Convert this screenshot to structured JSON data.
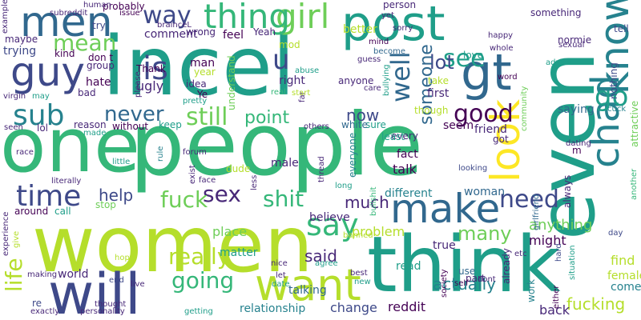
{
  "palette": {
    "teal": "#1f9e89",
    "lime": "#b5de2b",
    "navy": "#3e4989",
    "purple": "#482878",
    "green": "#35b779",
    "blue": "#31688e",
    "light_green": "#6ece58",
    "yellow": "#fde725",
    "dark_purple": "#440154",
    "mid_teal": "#26828e"
  },
  "words": [
    {
      "text": "incel",
      "c": "teal"
    },
    {
      "text": "people",
      "c": "green"
    },
    {
      "text": "one",
      "c": "green"
    },
    {
      "text": "women",
      "c": "lime"
    },
    {
      "text": "think",
      "c": "teal"
    },
    {
      "text": "even",
      "c": "teal"
    },
    {
      "text": "want",
      "c": "lime"
    },
    {
      "text": "will",
      "c": "navy"
    },
    {
      "text": "post",
      "c": "teal"
    },
    {
      "text": "men",
      "c": "blue"
    },
    {
      "text": "guy",
      "c": "navy"
    },
    {
      "text": "make",
      "c": "blue"
    },
    {
      "text": "girl",
      "c": "light_green"
    },
    {
      "text": "thing",
      "c": "green"
    },
    {
      "text": "way",
      "c": "navy"
    },
    {
      "text": "gt",
      "c": "blue"
    },
    {
      "text": "know",
      "c": "mid_teal"
    },
    {
      "text": "chad",
      "c": "mid_teal"
    },
    {
      "text": "look",
      "c": "yellow"
    },
    {
      "text": "time",
      "c": "navy"
    },
    {
      "text": "say",
      "c": "green"
    },
    {
      "text": "sub",
      "c": "mid_teal"
    },
    {
      "text": "mean",
      "c": "light_green"
    },
    {
      "text": "is",
      "c": "navy"
    },
    {
      "text": "u",
      "c": "navy"
    },
    {
      "text": "well",
      "c": "blue"
    },
    {
      "text": "go",
      "c": "teal"
    },
    {
      "text": "see",
      "c": "teal"
    },
    {
      "text": "good",
      "c": "dark_purple"
    },
    {
      "text": "still",
      "c": "light_green"
    },
    {
      "text": "never",
      "c": "blue"
    },
    {
      "text": "sex",
      "c": "purple"
    },
    {
      "text": "shit",
      "c": "green"
    },
    {
      "text": "fuck",
      "c": "light_green"
    },
    {
      "text": "really",
      "c": "lime"
    },
    {
      "text": "going",
      "c": "green"
    },
    {
      "text": "need",
      "c": "navy"
    },
    {
      "text": "life",
      "c": "lime"
    },
    {
      "text": "point",
      "c": "green"
    },
    {
      "text": "said",
      "c": "purple"
    },
    {
      "text": "many",
      "c": "light_green"
    },
    {
      "text": "much",
      "c": "purple"
    },
    {
      "text": "now",
      "c": "navy"
    },
    {
      "text": "lot",
      "c": "navy"
    },
    {
      "text": "actually",
      "c": "mid_teal"
    },
    {
      "text": "fucking",
      "c": "lime"
    },
    {
      "text": "someone",
      "c": "blue"
    },
    {
      "text": "help",
      "c": "navy"
    },
    {
      "text": "anything",
      "c": "light_green"
    },
    {
      "text": "problem",
      "c": "lime"
    },
    {
      "text": "reddit",
      "c": "dark_purple"
    },
    {
      "text": "change",
      "c": "navy"
    },
    {
      "text": "relationship",
      "c": "mid_teal"
    },
    {
      "text": "world",
      "c": "purple"
    },
    {
      "text": "back",
      "c": "purple"
    },
    {
      "text": "place",
      "c": "light_green"
    },
    {
      "text": "matter",
      "c": "teal"
    },
    {
      "text": "different",
      "c": "mid_teal"
    },
    {
      "text": "female",
      "c": "lime"
    },
    {
      "text": "come",
      "c": "mid_teal"
    },
    {
      "text": "find",
      "c": "lime"
    },
    {
      "text": "woman",
      "c": "blue"
    },
    {
      "text": "talk",
      "c": "dark_purple"
    },
    {
      "text": "fact",
      "c": "dark_purple"
    },
    {
      "text": "might",
      "c": "dark_purple"
    },
    {
      "text": "believe",
      "c": "purple"
    },
    {
      "text": "talking",
      "c": "blue"
    },
    {
      "text": "true",
      "c": "purple"
    },
    {
      "text": "read",
      "c": "teal"
    },
    {
      "text": "feel",
      "c": "dark_purple"
    },
    {
      "text": "comment",
      "c": "purple"
    },
    {
      "text": "better",
      "c": "lime"
    },
    {
      "text": "saying",
      "c": "blue"
    },
    {
      "text": "friend",
      "c": "purple"
    },
    {
      "text": "seem",
      "c": "dark_purple"
    },
    {
      "text": "first",
      "c": "purple"
    },
    {
      "text": "right",
      "c": "purple"
    },
    {
      "text": "hate",
      "c": "dark_purple"
    },
    {
      "text": "ugly",
      "c": "purple"
    },
    {
      "text": "probably",
      "c": "dark_purple"
    },
    {
      "text": "something",
      "c": "purple"
    },
    {
      "text": "tell",
      "c": "navy"
    },
    {
      "text": "love",
      "c": "teal"
    },
    {
      "text": "kind",
      "c": "dark_purple"
    },
    {
      "text": "trying",
      "c": "navy"
    },
    {
      "text": "maybe",
      "c": "purple"
    },
    {
      "text": "man",
      "c": "dark_purple"
    },
    {
      "text": "idea",
      "c": "purple"
    },
    {
      "text": "reason",
      "c": "purple"
    },
    {
      "text": "without",
      "c": "dark_purple"
    },
    {
      "text": "keep",
      "c": "teal"
    },
    {
      "text": "lol",
      "c": "purple"
    },
    {
      "text": "dude",
      "c": "lime"
    },
    {
      "text": "male",
      "c": "purple"
    },
    {
      "text": "everyone",
      "c": "mid_teal"
    },
    {
      "text": "every",
      "c": "purple"
    },
    {
      "text": "sure",
      "c": "teal"
    },
    {
      "text": "white",
      "c": "blue"
    },
    {
      "text": "got",
      "c": "purple"
    },
    {
      "text": "take",
      "c": "lime"
    },
    {
      "text": "mod",
      "c": "lime"
    },
    {
      "text": "anyone",
      "c": "purple"
    },
    {
      "text": "already",
      "c": "purple"
    },
    {
      "text": "part",
      "c": "purple"
    },
    {
      "text": "work",
      "c": "mid_teal"
    },
    {
      "text": "use",
      "c": "blue"
    },
    {
      "text": "re",
      "c": "navy"
    },
    {
      "text": "around",
      "c": "dark_purple"
    },
    {
      "text": "call",
      "c": "teal"
    },
    {
      "text": "stop",
      "c": "light_green"
    },
    {
      "text": "always",
      "c": "purple"
    },
    {
      "text": "though",
      "c": "lime"
    },
    {
      "text": "least",
      "c": "teal"
    },
    {
      "text": "understand",
      "c": "light_green"
    },
    {
      "text": "bad",
      "c": "purple"
    },
    {
      "text": "group",
      "c": "purple"
    },
    {
      "text": "Thank",
      "c": "dark_purple"
    },
    {
      "text": "Yeah",
      "c": "purple"
    },
    {
      "text": "don t",
      "c": "dark_purple"
    },
    {
      "text": "wrong",
      "c": "purple"
    },
    {
      "text": "year",
      "c": "lime"
    },
    {
      "text": "Ye",
      "c": "dark_purple"
    },
    {
      "text": "try",
      "c": "navy"
    },
    {
      "text": "now",
      "c": "navy"
    },
    {
      "text": "normie",
      "c": "purple"
    },
    {
      "text": "girlfriend",
      "c": "blue"
    },
    {
      "text": "attractive",
      "c": "light_green"
    },
    {
      "text": "sexual",
      "c": "purple"
    },
    {
      "text": "dating",
      "c": "purple"
    },
    {
      "text": "looking",
      "c": "navy"
    },
    {
      "text": "m",
      "c": "dark_purple"
    },
    {
      "text": "community",
      "c": "light_green"
    },
    {
      "text": "nothing",
      "c": "navy"
    },
    {
      "text": "person",
      "c": "purple"
    },
    {
      "text": "happy",
      "c": "purple"
    },
    {
      "text": "whole",
      "c": "purple"
    },
    {
      "text": "advice",
      "c": "teal"
    },
    {
      "text": "cuck",
      "c": "mid_teal"
    },
    {
      "text": "situation",
      "c": "teal"
    },
    {
      "text": "another",
      "c": "green"
    },
    {
      "text": "day",
      "c": "navy"
    },
    {
      "text": "hard",
      "c": "navy"
    },
    {
      "text": "etc",
      "c": "purple"
    },
    {
      "text": "word",
      "c": "dark_purple"
    },
    {
      "text": "self",
      "c": "dark_purple"
    },
    {
      "text": "dont",
      "c": "purple"
    },
    {
      "text": "society",
      "c": "dark_purple"
    },
    {
      "text": "either",
      "c": "dark_purple"
    },
    {
      "text": "bullshit",
      "c": "green"
    },
    {
      "text": "bullying",
      "c": "teal"
    },
    {
      "text": "far",
      "c": "purple"
    },
    {
      "text": "care",
      "c": "purple"
    },
    {
      "text": "guess",
      "c": "purple"
    },
    {
      "text": "yet",
      "c": "purple"
    },
    {
      "text": "sorry",
      "c": "purple"
    },
    {
      "text": "mind",
      "c": "dark_purple"
    },
    {
      "text": "become",
      "c": "blue"
    },
    {
      "text": "issue",
      "c": "dark_purple"
    },
    {
      "text": "human",
      "c": "purple"
    },
    {
      "text": "subreddit",
      "c": "purple"
    },
    {
      "text": "brainceL",
      "c": "purple"
    },
    {
      "text": "please",
      "c": "purple"
    },
    {
      "text": "pretty",
      "c": "teal"
    },
    {
      "text": "forum",
      "c": "purple"
    },
    {
      "text": "rule",
      "c": "mid_teal"
    },
    {
      "text": "exist",
      "c": "purple"
    },
    {
      "text": "face",
      "c": "purple"
    },
    {
      "text": "less",
      "c": "purple"
    },
    {
      "text": "thread",
      "c": "purple"
    },
    {
      "text": "long",
      "c": "teal"
    },
    {
      "text": "banned",
      "c": "lime"
    },
    {
      "text": "nice",
      "c": "purple"
    },
    {
      "text": "agree",
      "c": "teal"
    },
    {
      "text": "best",
      "c": "purple"
    },
    {
      "text": "new",
      "c": "teal"
    },
    {
      "text": "let",
      "c": "purple"
    },
    {
      "text": "date",
      "c": "teal"
    },
    {
      "text": "hope",
      "c": "lime"
    },
    {
      "text": "live",
      "c": "purple"
    },
    {
      "text": "end",
      "c": "navy"
    },
    {
      "text": "making",
      "c": "purple"
    },
    {
      "text": "exactly",
      "c": "purple"
    },
    {
      "text": "thought",
      "c": "purple"
    },
    {
      "text": "personality",
      "c": "purple"
    },
    {
      "text": "getting",
      "c": "teal"
    },
    {
      "text": "experience",
      "c": "purple"
    },
    {
      "text": "give",
      "c": "lime"
    },
    {
      "text": "literally",
      "c": "purple"
    },
    {
      "text": "little",
      "c": "teal"
    },
    {
      "text": "made",
      "c": "teal"
    },
    {
      "text": "race",
      "c": "purple"
    },
    {
      "text": "seen",
      "c": "purple"
    },
    {
      "text": "virgin",
      "c": "purple"
    },
    {
      "text": "may",
      "c": "teal"
    },
    {
      "text": "start",
      "c": "lime"
    },
    {
      "text": "example",
      "c": "purple"
    },
    {
      "text": "abuse",
      "c": "teal"
    },
    {
      "text": "real",
      "c": "green"
    },
    {
      "text": "others",
      "c": "purple"
    }
  ]
}
